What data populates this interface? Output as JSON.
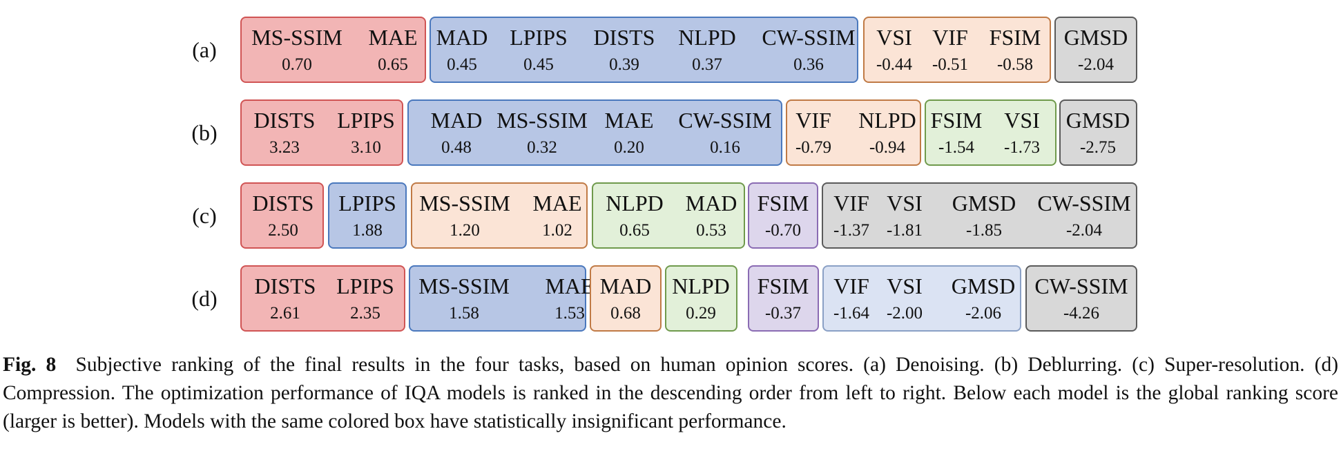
{
  "figure": {
    "tasks": [
      {
        "label": "(a)",
        "groups": [
          {
            "color": "red",
            "metrics": [
              {
                "name": "MS-SSIM",
                "score": "0.70"
              },
              {
                "name": "MAE",
                "score": "0.65"
              }
            ]
          },
          {
            "color": "blue",
            "metrics": [
              {
                "name": "MAD",
                "score": "0.45"
              },
              {
                "name": "LPIPS",
                "score": "0.45"
              },
              {
                "name": "DISTS",
                "score": "0.39"
              },
              {
                "name": "NLPD",
                "score": "0.37"
              },
              {
                "name": "CW-SSIM",
                "score": "0.36"
              }
            ]
          },
          {
            "color": "peach",
            "metrics": [
              {
                "name": "VSI",
                "score": "-0.44"
              },
              {
                "name": "VIF",
                "score": "-0.51"
              },
              {
                "name": "FSIM",
                "score": "-0.58"
              }
            ]
          },
          {
            "color": "gray",
            "metrics": [
              {
                "name": "GMSD",
                "score": "-2.04"
              }
            ]
          }
        ]
      },
      {
        "label": "(b)",
        "groups": [
          {
            "color": "red",
            "metrics": [
              {
                "name": "DISTS",
                "score": "3.23"
              },
              {
                "name": "LPIPS",
                "score": "3.10"
              }
            ]
          },
          {
            "color": "blue",
            "metrics": [
              {
                "name": "MAD",
                "score": "0.48"
              },
              {
                "name": "MS-SSIM",
                "score": "0.32"
              },
              {
                "name": "MAE",
                "score": "0.20"
              },
              {
                "name": "CW-SSIM",
                "score": "0.16"
              }
            ]
          },
          {
            "color": "peach",
            "metrics": [
              {
                "name": "VIF",
                "score": "-0.79"
              },
              {
                "name": "NLPD",
                "score": "-0.94"
              }
            ]
          },
          {
            "color": "green",
            "metrics": [
              {
                "name": "FSIM",
                "score": "-1.54"
              },
              {
                "name": "VSI",
                "score": "-1.73"
              }
            ]
          },
          {
            "color": "gray",
            "metrics": [
              {
                "name": "GMSD",
                "score": "-2.75"
              }
            ]
          }
        ]
      },
      {
        "label": "(c)",
        "groups": [
          {
            "color": "red",
            "metrics": [
              {
                "name": "DISTS",
                "score": "2.50"
              }
            ]
          },
          {
            "color": "blue",
            "metrics": [
              {
                "name": "LPIPS",
                "score": "1.88"
              }
            ]
          },
          {
            "color": "peach",
            "metrics": [
              {
                "name": "MS-SSIM",
                "score": "1.20"
              },
              {
                "name": "MAE",
                "score": "1.02"
              }
            ]
          },
          {
            "color": "green",
            "metrics": [
              {
                "name": "NLPD",
                "score": "0.65"
              },
              {
                "name": "MAD",
                "score": "0.53"
              }
            ]
          },
          {
            "color": "purple",
            "metrics": [
              {
                "name": "FSIM",
                "score": "-0.70"
              }
            ]
          },
          {
            "color": "gray",
            "metrics": [
              {
                "name": "VIF",
                "score": "-1.37"
              },
              {
                "name": "VSI",
                "score": "-1.81"
              },
              {
                "name": "GMSD",
                "score": "-1.85"
              },
              {
                "name": "CW-SSIM",
                "score": "-2.04"
              }
            ]
          }
        ]
      },
      {
        "label": "(d)",
        "groups": [
          {
            "color": "red",
            "metrics": [
              {
                "name": "DISTS",
                "score": "2.61"
              },
              {
                "name": "LPIPS",
                "score": "2.35"
              }
            ]
          },
          {
            "color": "blue",
            "metrics": [
              {
                "name": "MS-SSIM",
                "score": "1.58"
              },
              {
                "name": "MAE",
                "score": "1.53"
              }
            ]
          },
          {
            "color": "peach",
            "metrics": [
              {
                "name": "MAD",
                "score": "0.68"
              }
            ]
          },
          {
            "color": "green",
            "metrics": [
              {
                "name": "NLPD",
                "score": "0.29"
              }
            ]
          },
          {
            "color": "purple",
            "metrics": [
              {
                "name": "FSIM",
                "score": "-0.37"
              }
            ]
          },
          {
            "color": "lightblue",
            "metrics": [
              {
                "name": "VIF",
                "score": "-1.64"
              },
              {
                "name": "VSI",
                "score": "-2.00"
              },
              {
                "name": "GMSD",
                "score": "-2.06"
              }
            ]
          },
          {
            "color": "gray",
            "metrics": [
              {
                "name": "CW-SSIM",
                "score": "-4.26"
              }
            ]
          }
        ]
      }
    ]
  },
  "colors": {
    "red": {
      "fill": "#f2b5b5",
      "border": "#d05454"
    },
    "blue": {
      "fill": "#b7c6e5",
      "border": "#4a78bd"
    },
    "peach": {
      "fill": "#fbe4d6",
      "border": "#c07a45"
    },
    "green": {
      "fill": "#e2f0d9",
      "border": "#6f9a4c"
    },
    "purple": {
      "fill": "#ddd6ec",
      "border": "#8a6bb3"
    },
    "lightblue": {
      "fill": "#dbe3f3",
      "border": "#8aa0c5"
    },
    "gray": {
      "fill": "#d8d8d8",
      "border": "#5a5a5a"
    }
  },
  "caption": {
    "label": "Fig. 8",
    "text": "Subjective ranking of the final results in the four tasks, based on human opinion scores. (a) Denoising. (b) Deblurring. (c) Super-resolution. (d) Compression. The optimization performance of IQA models is ranked in the descending order from left to right. Below each model is the global ranking score (larger is better). Models with the same colored box have statistically insignificant performance."
  }
}
